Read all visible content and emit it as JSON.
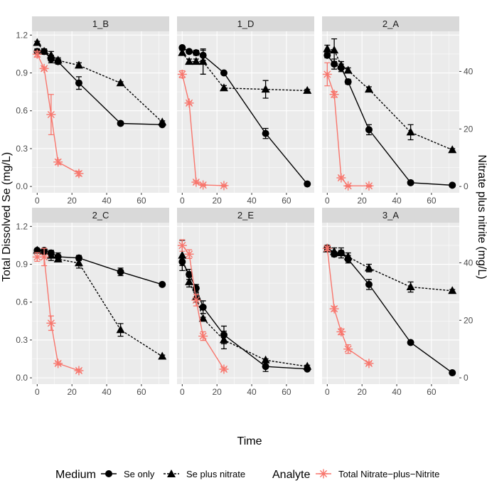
{
  "chart_data": {
    "type": "line",
    "layout": "facet-grid",
    "xlabel": "Time",
    "ylabel_left": "Total Dissolved Se (mg/L)",
    "ylabel_right": "Nitrate plus nitrite (mg/L)",
    "x_range": [
      -3,
      76
    ],
    "x_ticks": [
      0,
      20,
      40,
      60
    ],
    "y_left_range": [
      -0.05,
      1.23
    ],
    "y_left_ticks": [
      "0.0",
      "0.3",
      "0.6",
      "0.9",
      "1.2"
    ],
    "y_right_ticks": [
      0,
      20,
      40
    ],
    "right_scale_factor": 0.0228,
    "legend": {
      "medium_title": "Medium",
      "medium_items": [
        "Se only",
        "Se plus nitrate"
      ],
      "analyte_title": "Analyte",
      "analyte_items": [
        "Total Nitrate−plus−Nitrite"
      ]
    },
    "colors": {
      "panel_bg": "#ebebeb",
      "strip_bg": "#d9d9d9",
      "grid": "#ffffff",
      "se_series": "#000000",
      "nitrate_series": "#f8766d",
      "axis_text": "#4d4d4d"
    },
    "facets": [
      {
        "name": "1_B",
        "se_only": [
          {
            "x": 0,
            "y": 1.07,
            "e": 0.02
          },
          {
            "x": 4,
            "y": 1.07,
            "e": 0.02
          },
          {
            "x": 8,
            "y": 1.01,
            "e": 0.03
          },
          {
            "x": 12,
            "y": 0.99,
            "e": 0.02
          },
          {
            "x": 24,
            "y": 0.82,
            "e": 0.05
          },
          {
            "x": 48,
            "y": 0.5,
            "e": 0.01
          },
          {
            "x": 72,
            "y": 0.49,
            "e": 0.01
          }
        ],
        "se_plus_nitrate": [
          {
            "x": 0,
            "y": 1.14,
            "e": 0.01
          },
          {
            "x": 4,
            "y": 1.07,
            "e": 0.02
          },
          {
            "x": 8,
            "y": 1.04,
            "e": 0.03
          },
          {
            "x": 12,
            "y": 1.0,
            "e": 0.02
          },
          {
            "x": 24,
            "y": 0.96,
            "e": 0.02
          },
          {
            "x": 48,
            "y": 0.82,
            "e": 0.01
          },
          {
            "x": 72,
            "y": 0.51,
            "e": 0.01
          }
        ],
        "nitrate": [
          {
            "x": 0,
            "y": 46,
            "e": 1
          },
          {
            "x": 4,
            "y": 41,
            "e": 0.5
          },
          {
            "x": 8,
            "y": 25,
            "e": 7
          },
          {
            "x": 12,
            "y": 8.5,
            "e": 0.8
          },
          {
            "x": 24,
            "y": 4.5,
            "e": 0.8
          }
        ]
      },
      {
        "name": "1_D",
        "se_only": [
          {
            "x": 0,
            "y": 1.1,
            "e": 0.01
          },
          {
            "x": 4,
            "y": 1.07,
            "e": 0.01
          },
          {
            "x": 8,
            "y": 1.06,
            "e": 0.02
          },
          {
            "x": 12,
            "y": 1.04,
            "e": 0.04
          },
          {
            "x": 24,
            "y": 0.9,
            "e": 0.01
          },
          {
            "x": 48,
            "y": 0.42,
            "e": 0.04
          },
          {
            "x": 72,
            "y": 0.02,
            "e": 0.01
          }
        ],
        "se_plus_nitrate": [
          {
            "x": 0,
            "y": 1.06,
            "e": 0.02
          },
          {
            "x": 4,
            "y": 0.99,
            "e": 0.02
          },
          {
            "x": 8,
            "y": 0.99,
            "e": 0.02
          },
          {
            "x": 12,
            "y": 0.99,
            "e": 0.1
          },
          {
            "x": 24,
            "y": 0.78,
            "e": 0.02
          },
          {
            "x": 48,
            "y": 0.77,
            "e": 0.07
          },
          {
            "x": 72,
            "y": 0.76,
            "e": 0.01
          }
        ],
        "nitrate": [
          {
            "x": 0,
            "y": 39,
            "e": 1.2
          },
          {
            "x": 4,
            "y": 29,
            "e": 0.5
          },
          {
            "x": 8,
            "y": 1.5,
            "e": 0.5
          },
          {
            "x": 12,
            "y": 0.5,
            "e": 0.3
          },
          {
            "x": 24,
            "y": 0.3,
            "e": 0.2
          }
        ]
      },
      {
        "name": "2_A",
        "se_only": [
          {
            "x": 0,
            "y": 1.04,
            "e": 0.02
          },
          {
            "x": 4,
            "y": 0.97,
            "e": 0.04
          },
          {
            "x": 8,
            "y": 0.94,
            "e": 0.03
          },
          {
            "x": 12,
            "y": 0.83,
            "e": 0.02
          },
          {
            "x": 24,
            "y": 0.45,
            "e": 0.04
          },
          {
            "x": 48,
            "y": 0.03,
            "e": 0.01
          },
          {
            "x": 72,
            "y": 0.01,
            "e": 0.01
          }
        ],
        "se_plus_nitrate": [
          {
            "x": 0,
            "y": 1.09,
            "e": 0.03
          },
          {
            "x": 4,
            "y": 1.08,
            "e": 0.09
          },
          {
            "x": 8,
            "y": 0.96,
            "e": 0.03
          },
          {
            "x": 12,
            "y": 0.92,
            "e": 0.02
          },
          {
            "x": 24,
            "y": 0.77,
            "e": 0.02
          },
          {
            "x": 48,
            "y": 0.43,
            "e": 0.06
          },
          {
            "x": 72,
            "y": 0.29,
            "e": 0.01
          }
        ],
        "nitrate": [
          {
            "x": 0,
            "y": 39,
            "e": 4
          },
          {
            "x": 4,
            "y": 32,
            "e": 1
          },
          {
            "x": 8,
            "y": 3,
            "e": 0.5
          },
          {
            "x": 12,
            "y": 0.2,
            "e": 0.2
          },
          {
            "x": 24,
            "y": 0.2,
            "e": 0.2
          }
        ]
      },
      {
        "name": "2_C",
        "se_only": [
          {
            "x": 0,
            "y": 1.01,
            "e": 0.01
          },
          {
            "x": 4,
            "y": 1.01,
            "e": 0.01
          },
          {
            "x": 8,
            "y": 0.99,
            "e": 0.02
          },
          {
            "x": 12,
            "y": 0.96,
            "e": 0.03
          },
          {
            "x": 24,
            "y": 0.95,
            "e": 0.02
          },
          {
            "x": 48,
            "y": 0.84,
            "e": 0.03
          },
          {
            "x": 72,
            "y": 0.74,
            "e": 0.01
          }
        ],
        "se_plus_nitrate": [
          {
            "x": 0,
            "y": 1.01,
            "e": 0.01
          },
          {
            "x": 4,
            "y": 1.0,
            "e": 0.02
          },
          {
            "x": 8,
            "y": 0.97,
            "e": 0.04
          },
          {
            "x": 12,
            "y": 0.94,
            "e": 0.02
          },
          {
            "x": 24,
            "y": 0.91,
            "e": 0.04
          },
          {
            "x": 48,
            "y": 0.38,
            "e": 0.05
          },
          {
            "x": 72,
            "y": 0.17,
            "e": 0.01
          }
        ],
        "nitrate": [
          {
            "x": 0,
            "y": 42,
            "e": 1.5
          },
          {
            "x": 4,
            "y": 42,
            "e": 3
          },
          {
            "x": 8,
            "y": 19,
            "e": 2.5
          },
          {
            "x": 12,
            "y": 5,
            "e": 0.5
          },
          {
            "x": 24,
            "y": 2.5,
            "e": 0.5
          }
        ]
      },
      {
        "name": "2_E",
        "se_only": [
          {
            "x": 0,
            "y": 0.92,
            "e": 0.03
          },
          {
            "x": 4,
            "y": 0.82,
            "e": 0.04
          },
          {
            "x": 8,
            "y": 0.71,
            "e": 0.03
          },
          {
            "x": 12,
            "y": 0.56,
            "e": 0.05
          },
          {
            "x": 24,
            "y": 0.34,
            "e": 0.07
          },
          {
            "x": 48,
            "y": 0.09,
            "e": 0.04
          },
          {
            "x": 72,
            "y": 0.07,
            "e": 0.01
          }
        ],
        "se_plus_nitrate": [
          {
            "x": 0,
            "y": 0.97,
            "e": 0.12
          },
          {
            "x": 4,
            "y": 0.76,
            "e": 0.04
          },
          {
            "x": 8,
            "y": 0.64,
            "e": 0.04
          },
          {
            "x": 12,
            "y": 0.47,
            "e": 0.01
          },
          {
            "x": 24,
            "y": 0.3,
            "e": 0.07
          },
          {
            "x": 48,
            "y": 0.14,
            "e": 0.01
          },
          {
            "x": 72,
            "y": 0.09,
            "e": 0.01
          }
        ],
        "nitrate": [
          {
            "x": 0,
            "y": 46,
            "e": 2
          },
          {
            "x": 4,
            "y": 43,
            "e": 1.5
          },
          {
            "x": 8,
            "y": 27,
            "e": 2
          },
          {
            "x": 12,
            "y": 14.5,
            "e": 1.5
          },
          {
            "x": 24,
            "y": 3,
            "e": 0.5
          }
        ]
      },
      {
        "name": "3_A",
        "se_only": [
          {
            "x": 0,
            "y": 1.03,
            "e": 0.02
          },
          {
            "x": 4,
            "y": 0.98,
            "e": 0.02
          },
          {
            "x": 8,
            "y": 0.99,
            "e": 0.04
          },
          {
            "x": 12,
            "y": 0.94,
            "e": 0.03
          },
          {
            "x": 24,
            "y": 0.74,
            "e": 0.04
          },
          {
            "x": 48,
            "y": 0.28,
            "e": 0.01
          },
          {
            "x": 72,
            "y": 0.04,
            "e": 0.01
          }
        ],
        "se_plus_nitrate": [
          {
            "x": 0,
            "y": 1.02,
            "e": 0.01
          },
          {
            "x": 4,
            "y": 1.0,
            "e": 0.03
          },
          {
            "x": 8,
            "y": 0.99,
            "e": 0.02
          },
          {
            "x": 12,
            "y": 0.96,
            "e": 0.03
          },
          {
            "x": 24,
            "y": 0.87,
            "e": 0.03
          },
          {
            "x": 48,
            "y": 0.72,
            "e": 0.04
          },
          {
            "x": 72,
            "y": 0.69,
            "e": 0.01
          }
        ],
        "nitrate": [
          {
            "x": 0,
            "y": 45,
            "e": 0.8
          },
          {
            "x": 4,
            "y": 24,
            "e": 0.8
          },
          {
            "x": 8,
            "y": 16,
            "e": 1
          },
          {
            "x": 12,
            "y": 10,
            "e": 1.5
          },
          {
            "x": 24,
            "y": 5,
            "e": 0.5
          }
        ]
      }
    ]
  }
}
